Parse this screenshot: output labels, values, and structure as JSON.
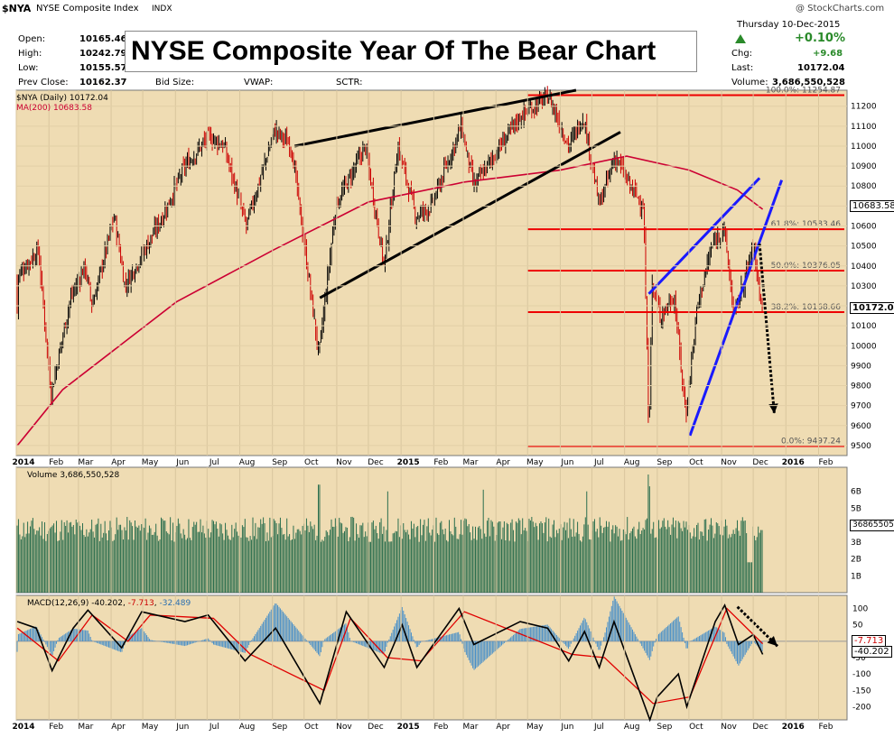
{
  "header": {
    "symbol": "$NYA",
    "name": "NYSE Composite Index",
    "exchange": "INDX",
    "credit": "@ StockCharts.com",
    "date": "Thursday 10-Dec-2015",
    "pct_change": "+0.10%",
    "banner": "NYSE Composite Year Of The Bear Chart"
  },
  "stats_left": [
    {
      "label": "Open:",
      "value": "10165.46"
    },
    {
      "label": "High:",
      "value": "10242.79"
    },
    {
      "label": "Low:",
      "value": "10155.57"
    },
    {
      "label": "Prev Close:",
      "value": "10162.37"
    }
  ],
  "stats_mid": {
    "bid_size": "Bid Size:",
    "vwap": "VWAP:",
    "sctr": "SCTR:"
  },
  "stats_right": [
    {
      "label": "Chg:",
      "value": "+9.68"
    },
    {
      "label": "Last:",
      "value": "10172.04"
    },
    {
      "label": "Volume:",
      "value": "3,686,550,528"
    }
  ],
  "legend": {
    "price": "$NYA (Daily) 10172.04",
    "ma": "MA(200) 10683.58",
    "volume": "Volume 3,686,550,528",
    "macd_label": "MACD(12,26,9)",
    "macd_v1": "-40.202",
    "macd_v2": "-7.713",
    "macd_v3": "-32.489"
  },
  "price_tags": {
    "ma": "10683.58",
    "last": "10172.04",
    "volume": "36865505",
    "macd_a": "-7.713",
    "macd_b": "-40.202"
  },
  "x_labels": [
    "2014",
    "Feb",
    "Mar",
    "Apr",
    "May",
    "Jun",
    "Jul",
    "Aug",
    "Sep",
    "Oct",
    "Nov",
    "Dec",
    "2015",
    "Feb",
    "Mar",
    "Apr",
    "May",
    "Jun",
    "Jul",
    "Aug",
    "Sep",
    "Oct",
    "Nov",
    "Dec",
    "2016",
    "Feb"
  ],
  "colors": {
    "panel_bg": "#efdcb3",
    "up": "#000000",
    "down": "#cc0000",
    "ma": "#cc0033",
    "fib": "#ee0000",
    "trend_blue": "#1a1aff",
    "volume": "#2b6e4e",
    "macd_hist": "#4a90c8"
  },
  "chart_data": [
    {
      "type": "candlestick",
      "title": "$NYA (Daily) 10172.04",
      "ylim": [
        9450,
        11280
      ],
      "yticks": [
        9500,
        9600,
        9700,
        9800,
        9900,
        10000,
        10100,
        10200,
        10300,
        10400,
        10500,
        10600,
        10700,
        10800,
        10900,
        11000,
        11100,
        11200
      ],
      "close_path": [
        [
          "2014-01-02",
          10350
        ],
        [
          "2014-01-22",
          10480
        ],
        [
          "2014-02-03",
          9760
        ],
        [
          "2014-02-21",
          10230
        ],
        [
          "2014-03-07",
          10400
        ],
        [
          "2014-03-14",
          10200
        ],
        [
          "2014-04-04",
          10650
        ],
        [
          "2014-04-14",
          10300
        ],
        [
          "2014-05-20",
          10650
        ],
        [
          "2014-06-10",
          10900
        ],
        [
          "2014-07-03",
          11050
        ],
        [
          "2014-07-17",
          11000
        ],
        [
          "2014-08-07",
          10600
        ],
        [
          "2014-09-03",
          11080
        ],
        [
          "2014-09-19",
          11000
        ],
        [
          "2014-10-15",
          9950
        ],
        [
          "2014-10-31",
          10700
        ],
        [
          "2014-11-28",
          11000
        ],
        [
          "2014-12-16",
          10400
        ],
        [
          "2014-12-29",
          11000
        ],
        [
          "2015-01-15",
          10650
        ],
        [
          "2015-01-30",
          10700
        ],
        [
          "2015-02-27",
          11100
        ],
        [
          "2015-03-11",
          10800
        ],
        [
          "2015-04-24",
          11150
        ],
        [
          "2015-05-21",
          11250
        ],
        [
          "2015-06-09",
          11000
        ],
        [
          "2015-06-23",
          11150
        ],
        [
          "2015-07-08",
          10700
        ],
        [
          "2015-07-23",
          10950
        ],
        [
          "2015-08-06",
          10800
        ],
        [
          "2015-08-19",
          10700
        ],
        [
          "2015-08-24",
          9550
        ],
        [
          "2015-08-27",
          10300
        ],
        [
          "2015-09-04",
          10150
        ],
        [
          "2015-09-17",
          10250
        ],
        [
          "2015-09-28",
          9650
        ],
        [
          "2015-10-09",
          10200
        ],
        [
          "2015-10-23",
          10500
        ],
        [
          "2015-11-03",
          10600
        ],
        [
          "2015-11-13",
          10150
        ],
        [
          "2015-12-01",
          10500
        ],
        [
          "2015-12-10",
          10172.04
        ]
      ],
      "series": [
        {
          "name": "MA(200)",
          "values": [
            [
              "2014-01-02",
              9500
            ],
            [
              "2014-02-14",
              9780
            ],
            [
              "2014-06-02",
              10220
            ],
            [
              "2014-09-02",
              10480
            ],
            [
              "2014-12-01",
              10720
            ],
            [
              "2015-03-02",
              10820
            ],
            [
              "2015-06-01",
              10880
            ],
            [
              "2015-08-03",
              10950
            ],
            [
              "2015-10-01",
              10880
            ],
            [
              "2015-11-16",
              10780
            ],
            [
              "2015-12-10",
              10683.58
            ]
          ]
        }
      ],
      "fibonacci": [
        {
          "label": "100.0%: 11254.87",
          "value": 11254.87
        },
        {
          "label": "61.8%: 10583.46",
          "value": 10583.46
        },
        {
          "label": "50.0%: 10376.05",
          "value": 10376.05
        },
        {
          "label": "38.2%: 10168.66",
          "value": 10168.66
        },
        {
          "label": "0.0%: 9497.24",
          "value": 9497.24
        }
      ],
      "trendlines": [
        {
          "color": "black",
          "from": [
            "2014-09-22",
            11000
          ],
          "to": [
            "2015-06-16",
            11280
          ]
        },
        {
          "color": "black",
          "from": [
            "2014-10-16",
            10240
          ],
          "to": [
            "2015-07-28",
            11070
          ]
        },
        {
          "color": "blue",
          "from": [
            "2015-08-24",
            10260
          ],
          "to": [
            "2015-12-07",
            10840
          ]
        },
        {
          "color": "blue",
          "from": [
            "2015-10-02",
            9550
          ],
          "to": [
            "2015-12-28",
            10830
          ]
        }
      ],
      "arrow": {
        "from": [
          "2015-12-07",
          10510
        ],
        "to": [
          "2015-12-21",
          9660
        ]
      },
      "ma_last": 10683.58,
      "last": 10172.04
    },
    {
      "type": "bar",
      "title": "Volume 3,686,550,528",
      "yticks_labels": [
        "1B",
        "2B",
        "3B",
        "4B",
        "5B",
        "6B"
      ],
      "ylim": [
        0,
        7
      ],
      "unit": "billion shares",
      "approx_daily_range": [
        3.0,
        4.5
      ],
      "spikes": [
        [
          "2014-10-15",
          6.4
        ],
        [
          "2014-12-19",
          6.0
        ],
        [
          "2015-03-20",
          6.1
        ],
        [
          "2015-06-26",
          6.0
        ],
        [
          "2015-08-24",
          7.0
        ],
        [
          "2015-08-25",
          6.3
        ]
      ],
      "last": 3.687
    },
    {
      "type": "line",
      "title": "MACD(12,26,9) -40.202, -7.713, -32.489",
      "ylim": [
        -240,
        140
      ],
      "yticks": [
        -200,
        -150,
        -100,
        -50,
        0,
        50,
        100
      ],
      "series": [
        {
          "name": "MACD",
          "values": [
            [
              "2014-01-02",
              60
            ],
            [
              "2014-01-20",
              40
            ],
            [
              "2014-02-04",
              -90
            ],
            [
              "2014-02-24",
              40
            ],
            [
              "2014-03-10",
              95
            ],
            [
              "2014-04-11",
              -20
            ],
            [
              "2014-04-30",
              90
            ],
            [
              "2014-06-10",
              60
            ],
            [
              "2014-07-02",
              80
            ],
            [
              "2014-08-06",
              -60
            ],
            [
              "2014-09-04",
              40
            ],
            [
              "2014-10-16",
              -190
            ],
            [
              "2014-11-10",
              90
            ],
            [
              "2014-12-16",
              -80
            ],
            [
              "2015-01-02",
              50
            ],
            [
              "2015-01-16",
              -80
            ],
            [
              "2015-02-25",
              100
            ],
            [
              "2015-03-11",
              -10
            ],
            [
              "2015-04-24",
              60
            ],
            [
              "2015-05-20",
              40
            ],
            [
              "2015-06-09",
              -60
            ],
            [
              "2015-06-24",
              30
            ],
            [
              "2015-07-08",
              -80
            ],
            [
              "2015-07-22",
              60
            ],
            [
              "2015-08-25",
              -240
            ],
            [
              "2015-09-01",
              -170
            ],
            [
              "2015-09-21",
              -100
            ],
            [
              "2015-09-29",
              -200
            ],
            [
              "2015-10-26",
              60
            ],
            [
              "2015-11-04",
              110
            ],
            [
              "2015-11-17",
              -10
            ],
            [
              "2015-12-01",
              20
            ],
            [
              "2015-12-10",
              -40.202
            ]
          ]
        },
        {
          "name": "Signal",
          "values": [
            [
              "2014-01-02",
              40
            ],
            [
              "2014-02-10",
              -60
            ],
            [
              "2014-03-14",
              80
            ],
            [
              "2014-04-17",
              0
            ],
            [
              "2014-05-08",
              80
            ],
            [
              "2014-07-07",
              70
            ],
            [
              "2014-08-11",
              -40
            ],
            [
              "2014-10-20",
              -150
            ],
            [
              "2014-11-14",
              70
            ],
            [
              "2014-12-19",
              -50
            ],
            [
              "2015-01-20",
              -60
            ],
            [
              "2015-03-02",
              90
            ],
            [
              "2015-06-12",
              -40
            ],
            [
              "2015-07-13",
              -50
            ],
            [
              "2015-08-28",
              -190
            ],
            [
              "2015-10-02",
              -170
            ],
            [
              "2015-11-06",
              100
            ],
            [
              "2015-12-10",
              -7.713
            ]
          ]
        }
      ],
      "histogram_last": -32.489,
      "arrow": {
        "from": [
          "2015-11-16",
          105
        ],
        "to": [
          "2015-12-24",
          -15
        ]
      }
    }
  ]
}
